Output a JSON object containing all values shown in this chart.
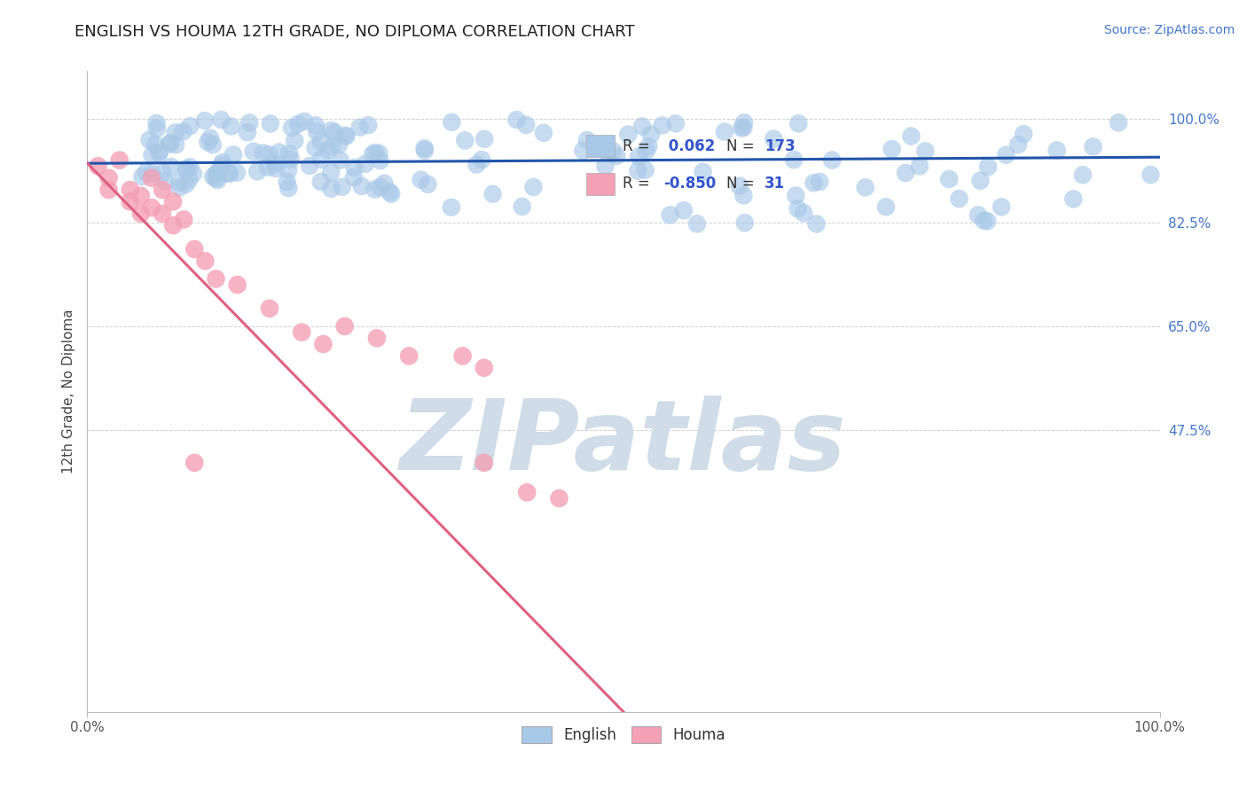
{
  "title": "ENGLISH VS HOUMA 12TH GRADE, NO DIPLOMA CORRELATION CHART",
  "source_text": "Source: ZipAtlas.com",
  "ylabel": "12th Grade, No Diploma",
  "xlim": [
    0.0,
    1.0
  ],
  "ylim": [
    0.0,
    1.08
  ],
  "xtick_positions": [
    0.0,
    1.0
  ],
  "xtick_labels": [
    "0.0%",
    "100.0%"
  ],
  "ytick_positions": [
    0.475,
    0.65,
    0.825,
    1.0
  ],
  "ytick_labels": [
    "47.5%",
    "65.0%",
    "82.5%",
    "100.0%"
  ],
  "english_R": 0.062,
  "english_N": 173,
  "houma_R": -0.85,
  "houma_N": 31,
  "english_color": "#a8c8e8",
  "english_line_color": "#2255aa",
  "houma_color": "#f4a0b5",
  "houma_line_color": "#e06080",
  "bg_color": "#ffffff",
  "grid_color": "#cccccc",
  "watermark_color": "#d0dce8",
  "watermark_text": "ZIPatlas",
  "legend_color_english": "#4477cc",
  "legend_color_houma": "#4477cc",
  "source_color": "#4477cc",
  "ytick_color": "#4477cc",
  "title_color": "#222222"
}
